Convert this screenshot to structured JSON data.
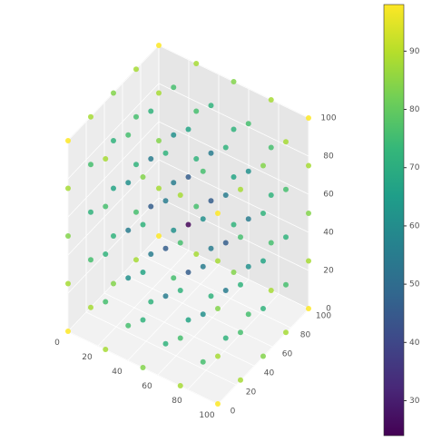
{
  "chart_data": {
    "type": "scatter3d",
    "x": [
      0,
      0,
      0,
      0,
      0,
      0,
      0,
      0,
      0,
      0,
      0,
      0,
      0,
      0,
      0,
      0,
      0,
      0,
      0,
      0,
      0,
      0,
      0,
      0,
      0,
      25,
      25,
      25,
      25,
      25,
      25,
      25,
      25,
      25,
      25,
      25,
      25,
      25,
      25,
      25,
      25,
      25,
      25,
      25,
      25,
      25,
      25,
      25,
      25,
      25,
      50,
      50,
      50,
      50,
      50,
      50,
      50,
      50,
      50,
      50,
      50,
      50,
      50,
      50,
      50,
      50,
      50,
      50,
      50,
      50,
      50,
      50,
      50,
      50,
      50,
      75,
      75,
      75,
      75,
      75,
      75,
      75,
      75,
      75,
      75,
      75,
      75,
      75,
      75,
      75,
      75,
      75,
      75,
      75,
      75,
      75,
      75,
      75,
      75,
      75,
      100,
      100,
      100,
      100,
      100,
      100,
      100,
      100,
      100,
      100,
      100,
      100,
      100,
      100,
      100,
      100,
      100,
      100,
      100,
      100,
      100,
      100,
      100,
      100,
      100
    ],
    "y": [
      0,
      0,
      0,
      0,
      0,
      25,
      25,
      25,
      25,
      25,
      50,
      50,
      50,
      50,
      50,
      75,
      75,
      75,
      75,
      75,
      100,
      100,
      100,
      100,
      100,
      0,
      0,
      0,
      0,
      0,
      25,
      25,
      25,
      25,
      25,
      50,
      50,
      50,
      50,
      50,
      75,
      75,
      75,
      75,
      75,
      100,
      100,
      100,
      100,
      100,
      0,
      0,
      0,
      0,
      0,
      25,
      25,
      25,
      25,
      25,
      50,
      50,
      50,
      50,
      50,
      75,
      75,
      75,
      75,
      75,
      100,
      100,
      100,
      100,
      100,
      0,
      0,
      0,
      0,
      0,
      25,
      25,
      25,
      25,
      25,
      50,
      50,
      50,
      50,
      50,
      75,
      75,
      75,
      75,
      75,
      100,
      100,
      100,
      100,
      100,
      0,
      0,
      0,
      0,
      0,
      25,
      25,
      25,
      25,
      25,
      50,
      50,
      50,
      50,
      50,
      75,
      75,
      75,
      75,
      75,
      100,
      100,
      100,
      100,
      100
    ],
    "z": [
      0,
      25,
      50,
      75,
      100,
      0,
      25,
      50,
      75,
      100,
      0,
      25,
      50,
      75,
      100,
      0,
      25,
      50,
      75,
      100,
      0,
      25,
      50,
      75,
      100,
      0,
      25,
      50,
      75,
      100,
      0,
      25,
      50,
      75,
      100,
      0,
      25,
      50,
      75,
      100,
      0,
      25,
      50,
      75,
      100,
      0,
      25,
      50,
      75,
      100,
      0,
      25,
      50,
      75,
      100,
      0,
      25,
      50,
      75,
      100,
      0,
      25,
      50,
      75,
      100,
      0,
      25,
      50,
      75,
      100,
      0,
      25,
      50,
      75,
      100,
      0,
      25,
      50,
      75,
      100,
      0,
      25,
      50,
      75,
      100,
      0,
      25,
      50,
      75,
      100,
      0,
      25,
      50,
      75,
      100,
      0,
      25,
      50,
      75,
      100,
      0,
      25,
      50,
      75,
      100,
      0,
      25,
      50,
      75,
      100,
      0,
      25,
      50,
      75,
      100,
      0,
      25,
      50,
      75,
      100,
      0,
      25,
      50,
      75,
      100
    ],
    "c": [
      98,
      88,
      84,
      88,
      98,
      88,
      76,
      72,
      76,
      88,
      84,
      72,
      67,
      72,
      84,
      88,
      76,
      72,
      76,
      88,
      98,
      88,
      84,
      88,
      98,
      88,
      76,
      72,
      76,
      88,
      76,
      61,
      55,
      61,
      76,
      72,
      55,
      46,
      55,
      72,
      76,
      61,
      55,
      61,
      76,
      88,
      76,
      72,
      76,
      88,
      84,
      72,
      67,
      72,
      84,
      72,
      55,
      46,
      55,
      72,
      67,
      46,
      25,
      46,
      67,
      72,
      55,
      46,
      55,
      72,
      84,
      72,
      67,
      72,
      84,
      88,
      76,
      72,
      76,
      88,
      76,
      61,
      55,
      61,
      76,
      72,
      55,
      46,
      55,
      72,
      76,
      61,
      55,
      61,
      76,
      88,
      76,
      72,
      76,
      88,
      98,
      88,
      84,
      88,
      98,
      88,
      76,
      72,
      76,
      88,
      84,
      72,
      67,
      72,
      84,
      88,
      76,
      72,
      76,
      88,
      98,
      88,
      84,
      88,
      98
    ],
    "xlim": [
      0,
      100
    ],
    "ylim": [
      0,
      100
    ],
    "zlim": [
      0,
      100
    ],
    "xticks": [
      0,
      20,
      40,
      60,
      80,
      100
    ],
    "yticks": [
      0,
      20,
      40,
      60,
      80,
      100
    ],
    "zticks": [
      0,
      20,
      40,
      60,
      80,
      100
    ],
    "clim": [
      24,
      98
    ],
    "cticks": [
      30,
      40,
      50,
      60,
      70,
      80,
      90
    ],
    "colormap": [
      "#440154",
      "#482878",
      "#3e4989",
      "#31688e",
      "#26828e",
      "#1f9e89",
      "#35b779",
      "#6ece58",
      "#b5de2b",
      "#fde725"
    ],
    "grid": true
  }
}
